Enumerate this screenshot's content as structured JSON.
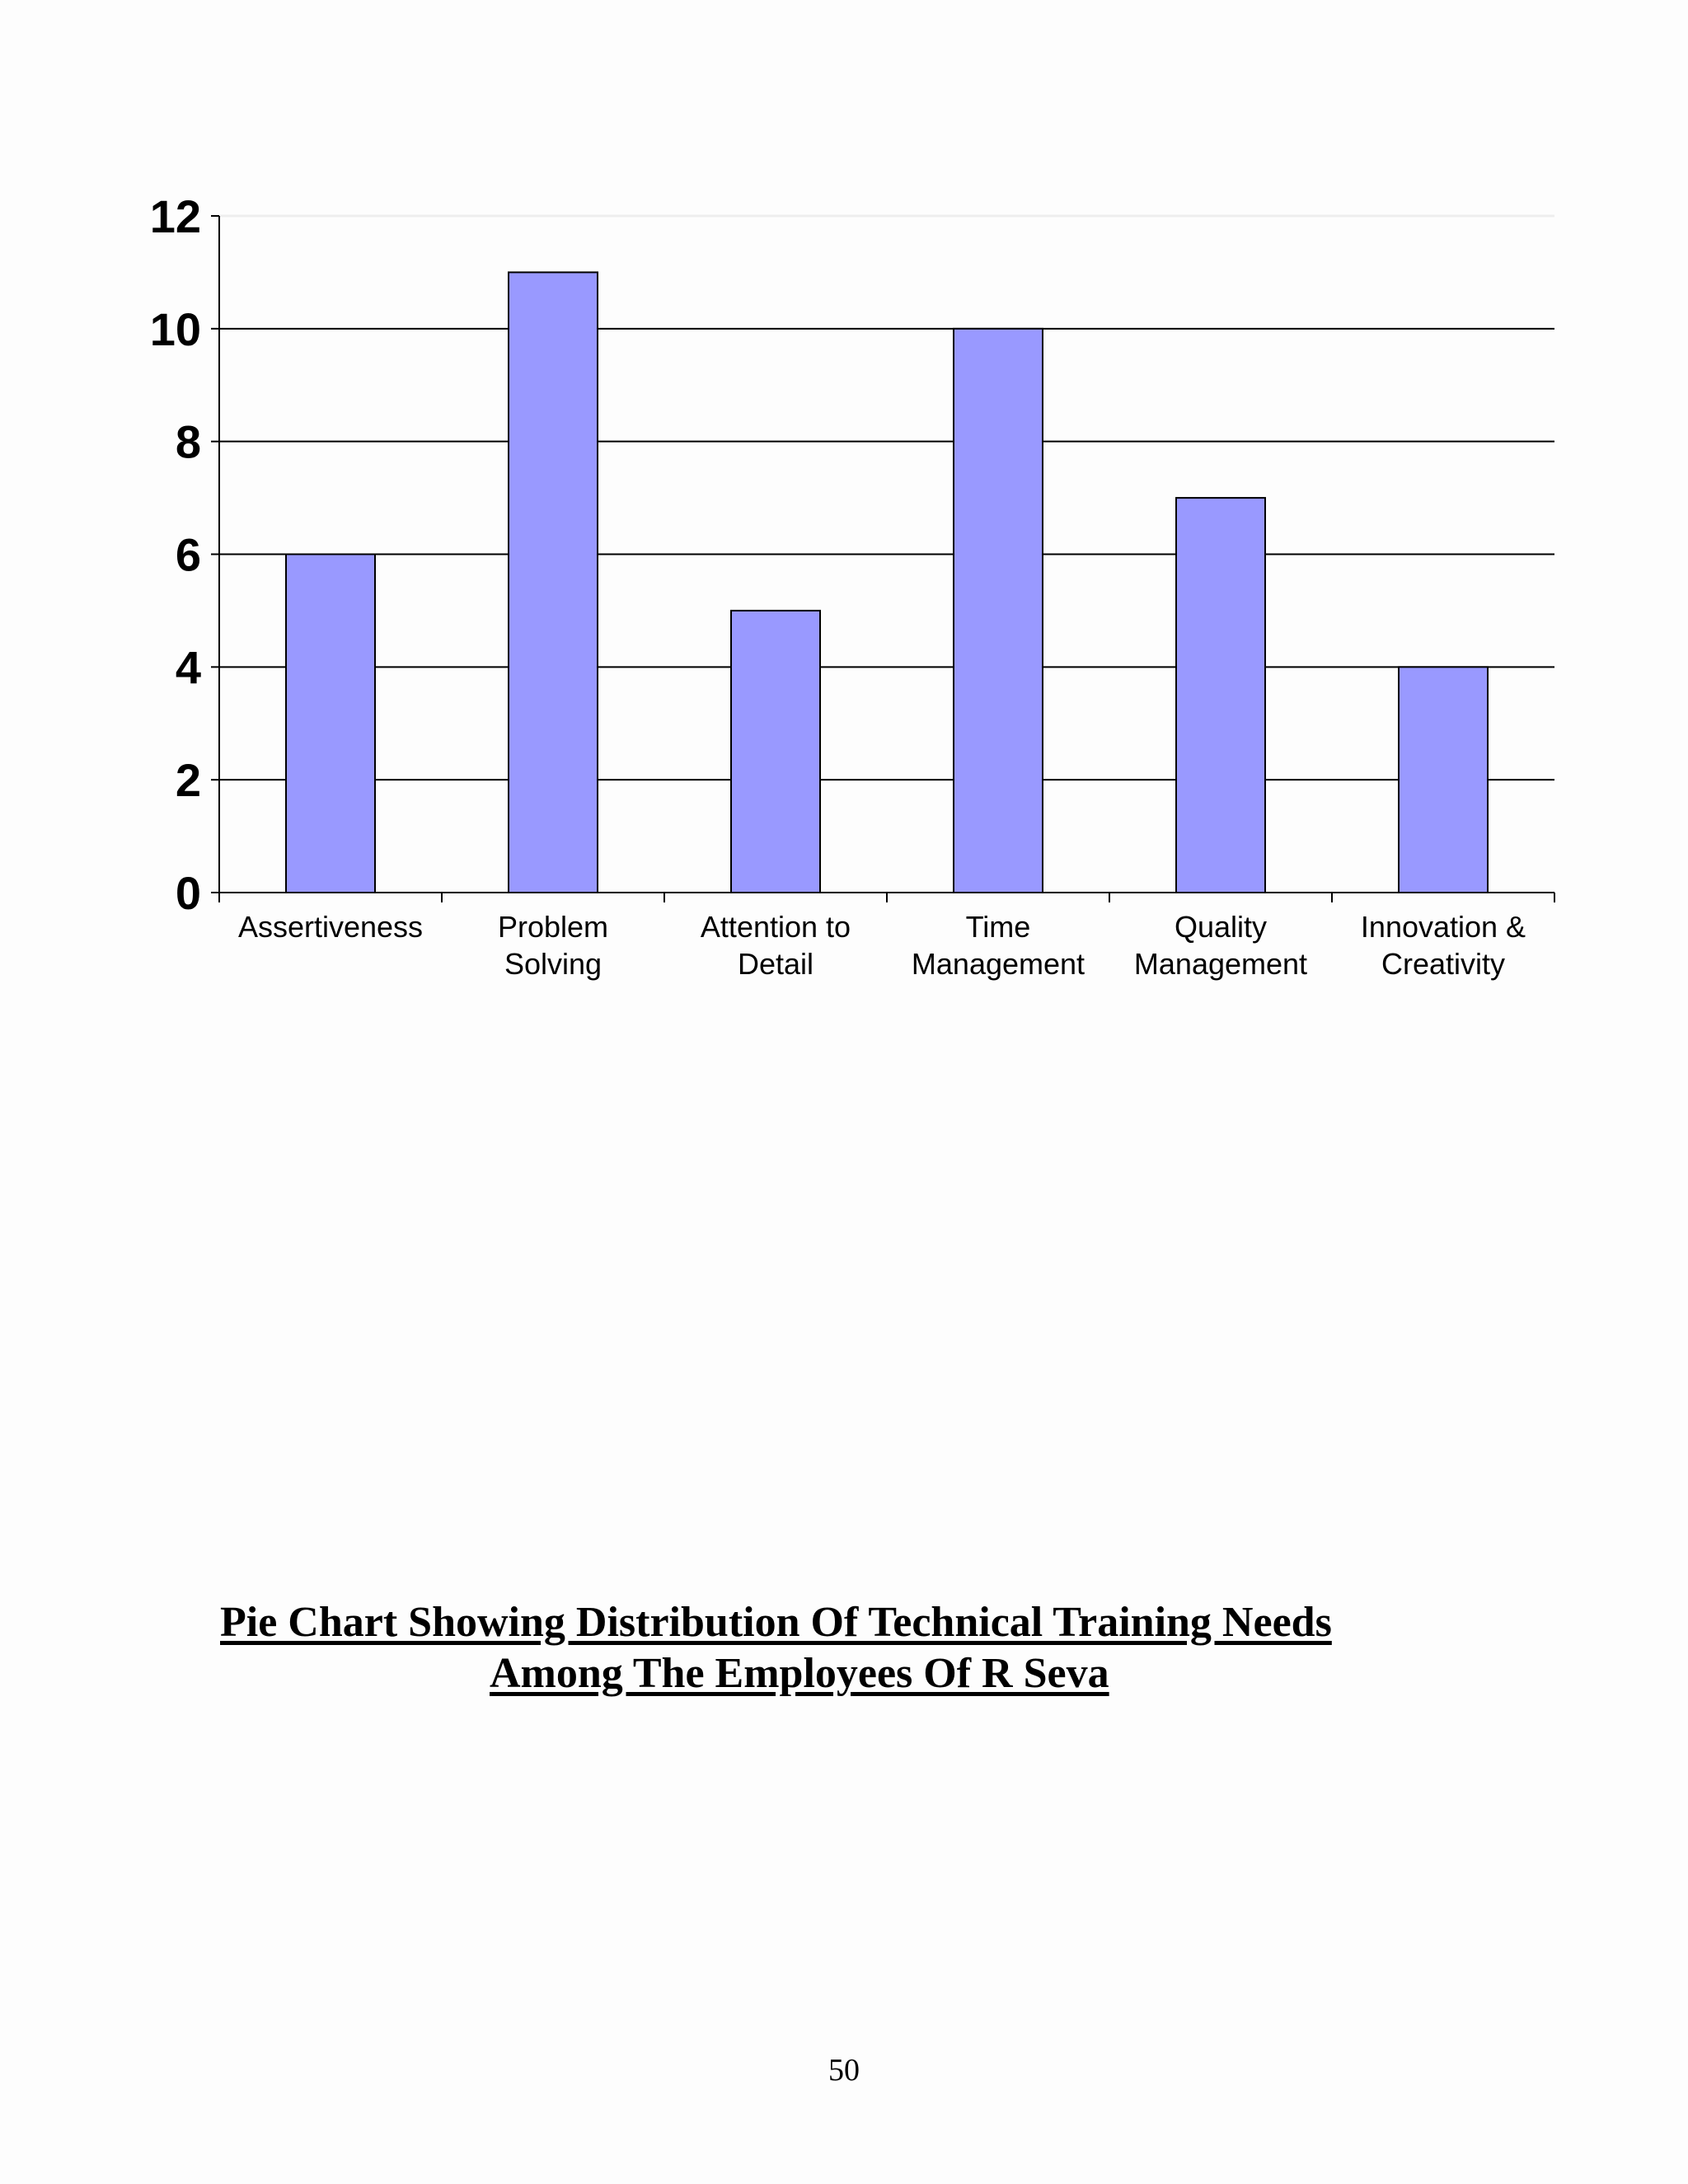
{
  "chart_data": {
    "type": "bar",
    "categories": [
      [
        "Assertiveness"
      ],
      [
        "Problem",
        "Solving"
      ],
      [
        "Attention to",
        "Detail"
      ],
      [
        "Time",
        "Management"
      ],
      [
        "Quality",
        "Management"
      ],
      [
        "Innovation &",
        "Creativity"
      ]
    ],
    "values": [
      6,
      11,
      5,
      10,
      7,
      4
    ],
    "ylim": [
      0,
      12
    ],
    "yticks": [
      0,
      2,
      4,
      6,
      8,
      10,
      12
    ],
    "grid": true,
    "bar_color": "#9999ff",
    "title": "",
    "xlabel": "",
    "ylabel": ""
  },
  "caption": {
    "line1": "Pie Chart Showing Distribution Of Technical Training Needs ",
    "line2": "Among The Employees Of R Seva"
  },
  "page_number": "50"
}
